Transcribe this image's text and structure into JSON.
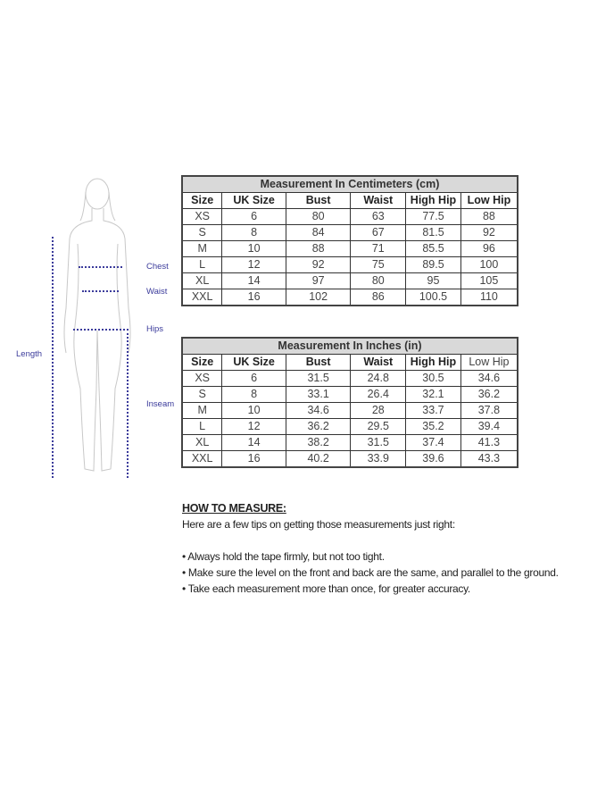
{
  "diagram": {
    "labels": {
      "chest": "Chest",
      "waist": "Waist",
      "hips": "Hips",
      "inseam": "Inseam",
      "length": "Length"
    },
    "accent_color": "#3b3b9b"
  },
  "cm_table": {
    "title": "Measurement In Centimeters (cm)",
    "headers": [
      "Size",
      "UK Size",
      "Bust",
      "Waist",
      "High Hip",
      "Low Hip"
    ],
    "rows": [
      [
        "XS",
        "6",
        "80",
        "63",
        "77.5",
        "88"
      ],
      [
        "S",
        "8",
        "84",
        "67",
        "81.5",
        "92"
      ],
      [
        "M",
        "10",
        "88",
        "71",
        "85.5",
        "96"
      ],
      [
        "L",
        "12",
        "92",
        "75",
        "89.5",
        "100"
      ],
      [
        "XL",
        "14",
        "97",
        "80",
        "95",
        "105"
      ],
      [
        "XXL",
        "16",
        "102",
        "86",
        "100.5",
        "110"
      ]
    ]
  },
  "in_table": {
    "title": "Measurement In Inches (in)",
    "headers": [
      "Size",
      "UK Size",
      "Bust",
      "Waist",
      "High Hip",
      "Low Hip"
    ],
    "rows": [
      [
        "XS",
        "6",
        "31.5",
        "24.8",
        "30.5",
        "34.6"
      ],
      [
        "S",
        "8",
        "33.1",
        "26.4",
        "32.1",
        "36.2"
      ],
      [
        "M",
        "10",
        "34.6",
        "28",
        "33.7",
        "37.8"
      ],
      [
        "L",
        "12",
        "36.2",
        "29.5",
        "35.2",
        "39.4"
      ],
      [
        "XL",
        "14",
        "38.2",
        "31.5",
        "37.4",
        "41.3"
      ],
      [
        "XXL",
        "16",
        "40.2",
        "33.9",
        "39.6",
        "43.3"
      ]
    ]
  },
  "how_to": {
    "heading": "HOW TO MEASURE:",
    "intro": "Here are a few tips on getting those measurements just right:",
    "tips": [
      "• Always hold the tape firmly, but not too tight.",
      "• Make sure the level on the front and back are the same, and parallel to the ground.",
      "• Take each measurement more than once, for greater accuracy."
    ]
  }
}
